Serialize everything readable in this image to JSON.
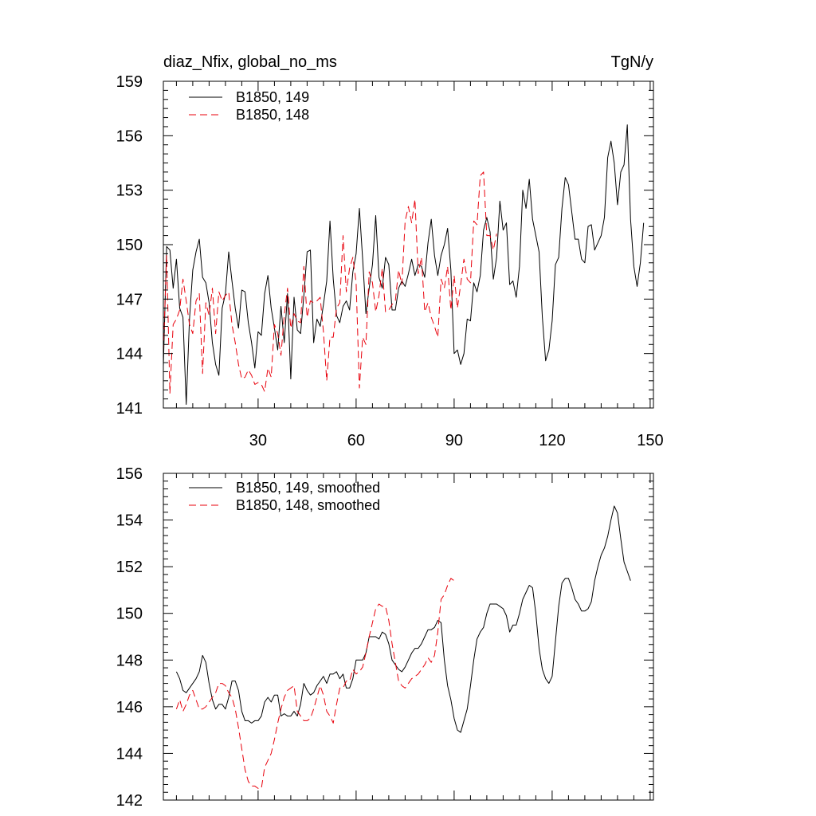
{
  "chart_data": [
    {
      "type": "line",
      "title": "diaz_Nfix, global_no_ms",
      "units": "TgN/y",
      "xlim": [
        1,
        151
      ],
      "ylim": [
        141,
        159
      ],
      "xticks": [
        30,
        60,
        90,
        120,
        150
      ],
      "yticks": [
        141,
        144,
        147,
        150,
        153,
        156,
        159
      ],
      "series": [
        {
          "name": "B1850, 149",
          "color": "#000000",
          "dash": "solid",
          "x_start": 1,
          "values": [
            143.3,
            149.9,
            149.7,
            147.6,
            149.2,
            146.5,
            146.0,
            141.2,
            145.9,
            148.6,
            149.6,
            150.3,
            148.2,
            147.9,
            146.8,
            144.6,
            143.4,
            142.8,
            146.5,
            147.3,
            149.6,
            148.0,
            146.5,
            145.4,
            147.5,
            147.4,
            145.7,
            144.6,
            143.2,
            145.2,
            145.0,
            147.3,
            148.3,
            146.5,
            145.4,
            144.2,
            146.6,
            144.6,
            147.3,
            142.6,
            147.1,
            145.3,
            145.1,
            147.2,
            149.6,
            149.7,
            144.6,
            145.9,
            145.5,
            146.7,
            148.0,
            151.3,
            148.1,
            146.1,
            145.7,
            146.6,
            146.9,
            146.4,
            148.5,
            149.5,
            152.0,
            149.2,
            146.2,
            147.6,
            148.9,
            151.6,
            148.2,
            147.6,
            149.3,
            148.9,
            146.4,
            146.4,
            147.6,
            148.0,
            147.7,
            148.4,
            149.2,
            148.3,
            148.9,
            148.8,
            148.2,
            150.1,
            151.4,
            149.4,
            148.3,
            149.4,
            150.0,
            150.9,
            148.6,
            144.0,
            144.2,
            143.4,
            144.0,
            145.9,
            145.8,
            147.9,
            147.4,
            148.3,
            150.8,
            151.5,
            150.7,
            148.1,
            149.3,
            152.4,
            150.8,
            151.2,
            147.8,
            148.0,
            147.1,
            148.8,
            153.0,
            152.0,
            153.6,
            151.4,
            150.5,
            149.6,
            146.0,
            143.6,
            144.2,
            145.8,
            148.9,
            149.3,
            152.0,
            153.7,
            153.3,
            151.8,
            150.3,
            150.3,
            149.2,
            149.0,
            151.0,
            151.1,
            149.7,
            150.1,
            150.5,
            151.5,
            154.8,
            155.7,
            154.5,
            152.2,
            154.0,
            154.4,
            156.6,
            151.4,
            148.8,
            147.7,
            149.0,
            151.2
          ]
        },
        {
          "name": "B1850, 148",
          "color": "#e8000b",
          "dash": "dashed",
          "x_start": 1,
          "values": [
            144.1,
            149.4,
            141.8,
            145.6,
            145.9,
            146.4,
            148.1,
            146.9,
            145.6,
            145.1,
            146.9,
            147.3,
            142.9,
            146.8,
            146.1,
            147.6,
            145.1,
            147.4,
            146.9,
            147.2,
            147.4,
            145.6,
            144.6,
            143.4,
            142.6,
            142.7,
            143.1,
            142.8,
            142.3,
            142.4,
            142.3,
            141.9,
            143.2,
            142.7,
            145.6,
            145.1,
            143.9,
            146.1,
            147.6,
            145.4,
            146.2,
            145.8,
            145.7,
            148.8,
            146.0,
            146.9,
            146.8,
            146.9,
            147.1,
            145.2,
            142.5,
            144.9,
            144.9,
            146.5,
            146.8,
            150.5,
            147.4,
            148.7,
            149.3,
            147.9,
            142.1,
            144.9,
            144.5,
            148.5,
            147.9,
            146.3,
            147.2,
            148.7,
            146.3,
            146.4,
            146.7,
            146.9,
            148.6,
            147.8,
            151.3,
            152.1,
            151.2,
            152.5,
            148.4,
            149.3,
            146.3,
            146.8,
            146.0,
            145.5,
            144.9,
            148.1,
            147.6,
            148.8,
            146.4,
            148.3,
            146.5,
            147.8,
            149.2,
            148.1,
            147.9,
            151.3,
            151.1,
            153.8,
            154.0,
            150.5,
            150.5,
            149.7,
            150.6
          ]
        }
      ]
    },
    {
      "type": "line",
      "title": "",
      "units": "",
      "xlim": [
        1,
        151
      ],
      "ylim": [
        142,
        156
      ],
      "xticks": [
        30,
        60,
        90,
        120,
        150
      ],
      "yticks": [
        142,
        144,
        146,
        148,
        150,
        152,
        154,
        156
      ],
      "series": [
        {
          "name": "B1850, 149, smoothed",
          "color": "#000000",
          "dash": "solid",
          "x_start": 5,
          "values": [
            147.5,
            147.2,
            146.7,
            146.6,
            146.8,
            147.0,
            147.2,
            147.5,
            148.2,
            147.9,
            147.0,
            146.3,
            145.9,
            146.1,
            146.1,
            145.9,
            146.4,
            147.1,
            147.1,
            146.7,
            145.8,
            145.4,
            145.4,
            145.3,
            145.4,
            145.4,
            145.6,
            146.2,
            146.4,
            146.2,
            146.5,
            146.5,
            145.6,
            145.7,
            145.6,
            145.6,
            145.8,
            145.6,
            146.1,
            147.0,
            146.7,
            146.5,
            146.6,
            146.9,
            147.1,
            147.3,
            147.0,
            147.4,
            147.4,
            147.5,
            147.2,
            147.4,
            146.8,
            146.8,
            147.2,
            148.0,
            148.0,
            148.0,
            148.3,
            149.0,
            149.0,
            149.0,
            148.9,
            149.2,
            149.1,
            148.7,
            148.0,
            147.8,
            147.6,
            147.5,
            147.7,
            148.0,
            148.3,
            148.5,
            148.5,
            148.7,
            149.0,
            149.3,
            149.3,
            149.4,
            149.7,
            149.6,
            148.0,
            146.9,
            146.3,
            145.5,
            145.0,
            144.9,
            145.4,
            145.9,
            146.9,
            148.0,
            148.9,
            149.2,
            149.4,
            150.0,
            150.4,
            150.4,
            150.4,
            150.3,
            150.2,
            149.9,
            149.2,
            149.5,
            149.5,
            150.0,
            150.6,
            150.9,
            151.2,
            151.1,
            150.0,
            148.5,
            147.6,
            147.2,
            147.0,
            147.3,
            148.8,
            150.3,
            151.3,
            151.5,
            151.5,
            151.1,
            150.6,
            150.4,
            150.1,
            150.1,
            150.2,
            150.5,
            151.4,
            152.0,
            152.5,
            152.8,
            153.3,
            154.0,
            154.6,
            154.3,
            153.2,
            152.2,
            151.8,
            151.4
          ]
        },
        {
          "name": "B1850, 148, smoothed",
          "color": "#e8000b",
          "dash": "dashed",
          "x_start": 5,
          "values": [
            145.9,
            146.3,
            145.8,
            146.1,
            146.5,
            146.7,
            146.3,
            145.9,
            145.9,
            146.0,
            146.2,
            146.4,
            146.6,
            147.0,
            147.0,
            146.9,
            146.6,
            146.4,
            145.9,
            145.1,
            144.2,
            143.3,
            142.8,
            142.6,
            142.6,
            142.5,
            142.5,
            143.4,
            143.7,
            144.0,
            144.6,
            145.3,
            145.9,
            146.4,
            146.7,
            146.8,
            146.9,
            145.8,
            145.6,
            145.4,
            145.4,
            145.5,
            145.9,
            146.4,
            146.9,
            146.5,
            145.8,
            145.6,
            145.3,
            146.1,
            146.8,
            146.8,
            147.1,
            147.1,
            147.6,
            147.4,
            147.5,
            147.7,
            148.3,
            149.0,
            149.6,
            150.2,
            150.4,
            150.3,
            150.3,
            149.7,
            148.7,
            147.9,
            147.1,
            146.9,
            146.8,
            147.0,
            147.2,
            147.3,
            147.4,
            147.6,
            147.8,
            148.1,
            147.9,
            148.2,
            149.2,
            150.6,
            150.8,
            151.2,
            151.5,
            151.4
          ]
        }
      ]
    }
  ]
}
